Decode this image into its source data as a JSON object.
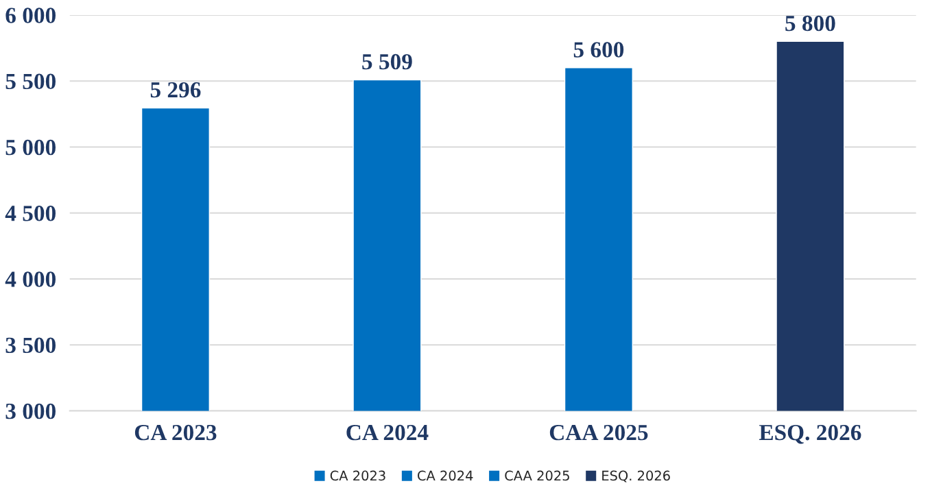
{
  "chart_data": {
    "type": "bar",
    "categories": [
      "CA 2023",
      "CA 2024",
      "CAA 2025",
      "ESQ. 2026"
    ],
    "series": [
      {
        "name": "CA 2023",
        "color": "#0070c0",
        "values": [
          5296,
          null,
          null,
          null
        ],
        "value_labels": [
          "5 296",
          null,
          null,
          null
        ]
      },
      {
        "name": "CA 2024",
        "color": "#0070c0",
        "values": [
          null,
          5509,
          null,
          null
        ],
        "value_labels": [
          null,
          "5 509",
          null,
          null
        ]
      },
      {
        "name": "CAA 2025",
        "color": "#0070c0",
        "values": [
          null,
          null,
          5600,
          null
        ],
        "value_labels": [
          null,
          null,
          "5 600",
          null
        ]
      },
      {
        "name": "ESQ. 2026",
        "color": "#1f3864",
        "values": [
          null,
          null,
          null,
          5800
        ],
        "value_labels": [
          null,
          null,
          null,
          "5 800"
        ]
      }
    ],
    "ylim": [
      3000,
      6000
    ],
    "yticks": [
      {
        "value": 3000,
        "label": "3 000"
      },
      {
        "value": 3500,
        "label": "3 500"
      },
      {
        "value": 4000,
        "label": "4 000"
      },
      {
        "value": 4500,
        "label": "4 500"
      },
      {
        "value": 5000,
        "label": "5 000"
      },
      {
        "value": 5500,
        "label": "5 500"
      },
      {
        "value": 6000,
        "label": "6 000"
      }
    ],
    "grid": "y",
    "legend": "bottom"
  }
}
